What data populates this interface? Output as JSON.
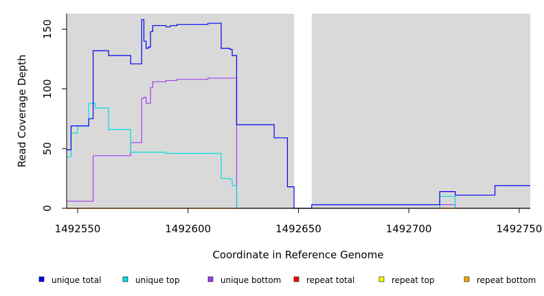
{
  "chart_data": {
    "type": "line",
    "step": true,
    "xlabel": "Coordinate in Reference Genome",
    "ylabel": "Read Coverage Depth",
    "xlim": [
      1492545,
      1492755
    ],
    "ylim": [
      0,
      163
    ],
    "xticks": [
      1492550,
      1492600,
      1492650,
      1492700,
      1492750
    ],
    "yticks": [
      0,
      50,
      100,
      150
    ],
    "xtick_labels": [
      "1492550",
      "1492600",
      "1492650",
      "1492700",
      "1492750"
    ],
    "ytick_labels": [
      "0",
      "50",
      "100",
      "150"
    ],
    "background": "#d9d9d9",
    "gap": [
      1492648,
      1492656
    ],
    "legend_position": "bottom",
    "series": [
      {
        "name": "unique total",
        "color": "#0000ee",
        "x": [
          1492545,
          1492547,
          1492555,
          1492557,
          1492564,
          1492574,
          1492579,
          1492580,
          1492581,
          1492582,
          1492583,
          1492584,
          1492590,
          1492592,
          1492595,
          1492609,
          1492615,
          1492619,
          1492620,
          1492622,
          1492639,
          1492645,
          1492648,
          1492656,
          1492714,
          1492721,
          1492739,
          1492755
        ],
        "y": [
          49,
          69,
          75,
          132,
          128,
          121,
          158,
          140,
          134,
          135,
          148,
          153,
          152,
          153,
          154,
          155,
          134,
          133,
          128,
          70,
          59,
          18,
          0,
          3,
          14,
          11,
          19,
          19
        ]
      },
      {
        "name": "unique top",
        "color": "#00dddd",
        "x": [
          1492545,
          1492547,
          1492550,
          1492555,
          1492558,
          1492564,
          1492574,
          1492580,
          1492590,
          1492615,
          1492619,
          1492620,
          1492622,
          1492648,
          1492714,
          1492721,
          1492755
        ],
        "y": [
          43,
          63,
          69,
          88,
          84,
          66,
          47,
          47,
          46,
          25,
          24,
          19,
          0,
          0,
          10,
          0,
          0
        ]
      },
      {
        "name": "unique bottom",
        "color": "#a040f0",
        "x": [
          1492545,
          1492555,
          1492557,
          1492574,
          1492579,
          1492580,
          1492581,
          1492582,
          1492583,
          1492584,
          1492590,
          1492595,
          1492609,
          1492622,
          1492648,
          1492714,
          1492721,
          1492755
        ],
        "y": [
          6,
          6,
          44,
          55,
          92,
          93,
          88,
          88,
          101,
          106,
          107,
          108,
          109,
          0,
          0,
          3,
          0,
          0
        ]
      },
      {
        "name": "repeat total",
        "color": "#ff0000",
        "x": [
          1492545,
          1492755
        ],
        "y": [
          0,
          0
        ]
      },
      {
        "name": "repeat top",
        "color": "#ffff00",
        "x": [
          1492545,
          1492755
        ],
        "y": [
          0,
          0
        ]
      },
      {
        "name": "repeat bottom",
        "color": "#ffa500",
        "x": [
          1492545,
          1492755
        ],
        "y": [
          0,
          0
        ]
      }
    ]
  }
}
